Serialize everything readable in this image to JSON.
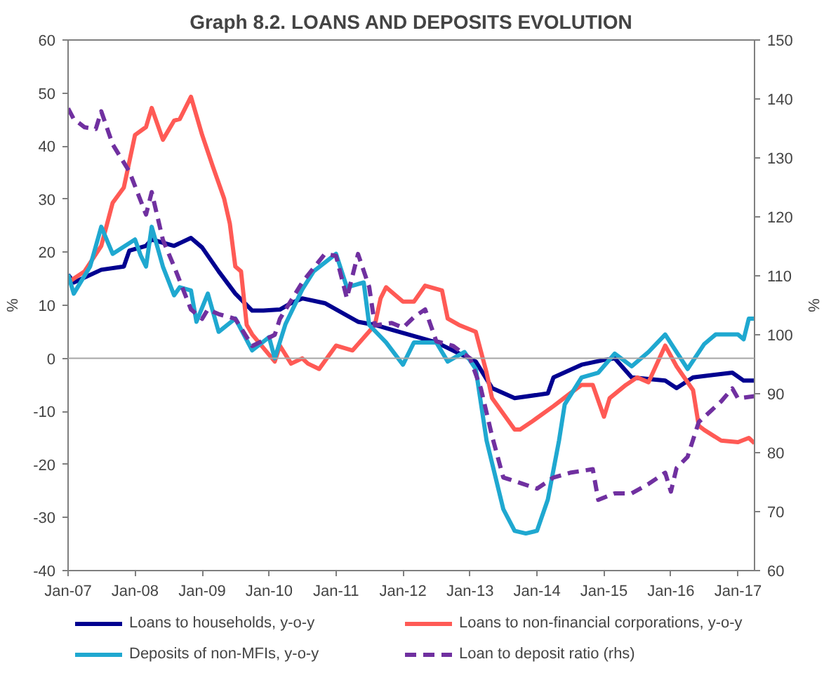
{
  "chart_data": {
    "type": "line",
    "title": "Graph 8.2. LOANS AND DEPOSITS EVOLUTION",
    "ylabel": "%",
    "y2label": "%",
    "legend": "bottom",
    "xlim": [
      "2007-01",
      "2017-04"
    ],
    "xticks": [
      {
        "value": "2007-01",
        "label": "Jan-07"
      },
      {
        "value": "2008-01",
        "label": "Jan-08"
      },
      {
        "value": "2009-01",
        "label": "Jan-09"
      },
      {
        "value": "2010-01",
        "label": "Jan-10"
      },
      {
        "value": "2011-01",
        "label": "Jan-11"
      },
      {
        "value": "2012-01",
        "label": "Jan-12"
      },
      {
        "value": "2013-01",
        "label": "Jan-13"
      },
      {
        "value": "2014-01",
        "label": "Jan-14"
      },
      {
        "value": "2015-01",
        "label": "Jan-15"
      },
      {
        "value": "2016-01",
        "label": "Jan-16"
      },
      {
        "value": "2017-01",
        "label": "Jan-17"
      }
    ],
    "ylim": [
      -40,
      60
    ],
    "yticks": [
      -40,
      -30,
      -20,
      -10,
      0,
      10,
      20,
      30,
      40,
      50,
      60
    ],
    "y2lim": [
      60,
      150
    ],
    "y2ticks": [
      60,
      70,
      80,
      90,
      100,
      110,
      120,
      130,
      140,
      150
    ],
    "ref_lines": [
      {
        "axis": "y",
        "value": 0,
        "color": "#a6a6a6"
      }
    ],
    "series": [
      {
        "name": "Loans to households, y-o-y",
        "color": "#000090",
        "line_style": "solid",
        "x": [
          "2007-01",
          "2007-02",
          "2007-07",
          "2007-11",
          "2007-12",
          "2008-03",
          "2008-04",
          "2008-08",
          "2008-11",
          "2009-01",
          "2009-04",
          "2009-07",
          "2009-10",
          "2009-12",
          "2010-03",
          "2010-05",
          "2010-07",
          "2010-11",
          "2011-05",
          "2011-08",
          "2011-11",
          "2012-07",
          "2013-02",
          "2013-05",
          "2013-09",
          "2014-03",
          "2014-04",
          "2014-09",
          "2015-01",
          "2015-03",
          "2015-06",
          "2015-12",
          "2016-02",
          "2016-05",
          "2016-12",
          "2017-02",
          "2017-04"
        ],
        "values": [
          15.8,
          14.3,
          16.7,
          17.3,
          20.3,
          21.2,
          22.4,
          21.2,
          22.7,
          20.9,
          16.4,
          12.2,
          9,
          9,
          9.2,
          10.4,
          11.3,
          10.4,
          6.9,
          6.3,
          5.4,
          3,
          -0.6,
          -5.6,
          -7.5,
          -6.6,
          -3.6,
          -1.2,
          -0.3,
          0,
          -3.6,
          -4.2,
          -5.6,
          -3.6,
          -2.7,
          -4.2,
          -4.2
        ]
      },
      {
        "name": "Loans to non-financial corporations, y-o-y",
        "color": "#ff5a55",
        "line_style": "solid",
        "x": [
          "2007-01",
          "2007-04",
          "2007-07",
          "2007-09",
          "2007-11",
          "2008-01",
          "2008-03",
          "2008-04",
          "2008-06",
          "2008-08",
          "2008-09",
          "2008-11",
          "2009-01",
          "2009-03",
          "2009-05",
          "2009-06",
          "2009-07",
          "2009-08",
          "2009-09",
          "2009-10",
          "2010-02",
          "2010-03",
          "2010-05",
          "2010-07",
          "2010-08",
          "2010-10",
          "2011-01",
          "2011-04",
          "2011-08",
          "2011-09",
          "2011-10",
          "2012-01",
          "2012-03",
          "2012-05",
          "2012-08",
          "2012-09",
          "2012-11",
          "2013-02",
          "2013-04",
          "2013-05",
          "2013-09",
          "2013-10",
          "2013-12",
          "2014-04",
          "2014-07",
          "2014-09",
          "2014-11",
          "2015-01",
          "2015-02",
          "2015-05",
          "2015-07",
          "2015-09",
          "2015-12",
          "2016-02",
          "2016-05",
          "2016-06",
          "2016-07",
          "2016-10",
          "2017-01",
          "2017-03",
          "2017-04"
        ],
        "values": [
          14.3,
          16.4,
          21.2,
          29.3,
          32.2,
          42.1,
          43.6,
          47.2,
          41.2,
          44.8,
          45.1,
          49.3,
          42.1,
          36.1,
          30.1,
          25.4,
          17.3,
          16.4,
          6.3,
          4.5,
          -0.6,
          2.4,
          -1,
          0,
          -1,
          -2,
          2.4,
          1.5,
          6.3,
          11.3,
          13.4,
          10.7,
          10.7,
          13.7,
          12.8,
          7.5,
          6.3,
          5,
          -2.7,
          -7.5,
          -13.4,
          -13.4,
          -12,
          -9,
          -6.6,
          -5,
          -5,
          -11,
          -7.5,
          -5,
          -3.6,
          -4.5,
          2.4,
          -1.5,
          -6,
          -12.7,
          -13.5,
          -15.5,
          -15.8,
          -15,
          -16
        ]
      },
      {
        "name": "Deposits of non-MFIs, y-o-y",
        "color": "#1fa8d0",
        "line_style": "solid",
        "x": [
          "2007-01",
          "2007-02",
          "2007-05",
          "2007-07",
          "2007-09",
          "2008-01",
          "2008-02",
          "2008-03",
          "2008-04",
          "2008-06",
          "2008-08",
          "2008-09",
          "2008-11",
          "2008-12",
          "2009-02",
          "2009-04",
          "2009-07",
          "2009-10",
          "2010-01",
          "2010-02",
          "2010-04",
          "2010-07",
          "2010-09",
          "2011-01",
          "2011-03",
          "2011-06",
          "2011-07",
          "2011-10",
          "2012-01",
          "2012-03",
          "2012-07",
          "2012-09",
          "2012-12",
          "2013-02",
          "2013-04",
          "2013-07",
          "2013-09",
          "2013-11",
          "2014-01",
          "2014-03",
          "2014-05",
          "2014-06",
          "2014-09",
          "2014-12",
          "2015-03",
          "2015-06",
          "2015-09",
          "2015-12",
          "2016-02",
          "2016-04",
          "2016-07",
          "2016-09",
          "2017-01",
          "2017-02",
          "2017-03",
          "2017-04"
        ],
        "values": [
          15.8,
          12.2,
          17.3,
          24.8,
          19.7,
          22.4,
          19.4,
          17.3,
          24.8,
          17.3,
          11.9,
          13.4,
          12.8,
          6.9,
          12.2,
          5,
          7.5,
          1.5,
          4,
          0,
          6.5,
          13,
          16.4,
          19.7,
          13.4,
          14.3,
          6.3,
          3,
          -1.2,
          3,
          3,
          -0.6,
          1.2,
          -2,
          -15.5,
          -28.4,
          -32.5,
          -33,
          -32.5,
          -26.6,
          -15.5,
          -8.7,
          -3.6,
          -2.7,
          0.9,
          -1.5,
          1.2,
          4.5,
          1.2,
          -2,
          2.7,
          4.5,
          4.5,
          3.6,
          7.5,
          7.5
        ]
      },
      {
        "name": "Loan to deposit ratio (rhs)",
        "color": "#7030a0",
        "line_style": "dashed",
        "axis": "y2",
        "x": [
          "2007-01",
          "2007-02",
          "2007-04",
          "2007-06",
          "2007-07",
          "2007-09",
          "2007-12",
          "2008-03",
          "2008-04",
          "2008-06",
          "2008-08",
          "2008-11",
          "2009-01",
          "2009-02",
          "2009-04",
          "2009-07",
          "2009-10",
          "2010-02",
          "2010-03",
          "2010-07",
          "2010-11",
          "2011-01",
          "2011-03",
          "2011-05",
          "2011-07",
          "2011-08",
          "2011-11",
          "2012-01",
          "2012-03",
          "2012-05",
          "2012-07",
          "2012-10",
          "2013-01",
          "2013-03",
          "2013-05",
          "2013-07",
          "2013-08",
          "2014-01",
          "2014-04",
          "2014-07",
          "2014-11",
          "2014-12",
          "2015-03",
          "2015-06",
          "2015-09",
          "2015-12",
          "2016-01",
          "2016-02",
          "2016-04",
          "2016-06",
          "2016-10",
          "2016-12",
          "2017-01",
          "2017-04"
        ],
        "values": [
          138.4,
          136.6,
          135.2,
          134.9,
          137.9,
          132.3,
          127.7,
          120.4,
          124.2,
          116.1,
          111.6,
          104.3,
          102.7,
          104.3,
          103.5,
          102.7,
          98.1,
          100,
          102.7,
          108.9,
          113.7,
          113.4,
          106.2,
          113.7,
          108.1,
          101.6,
          102,
          101.2,
          103,
          104.3,
          98.9,
          98.1,
          96,
          90.9,
          82.8,
          75.8,
          75.5,
          73.9,
          75.8,
          76.6,
          77.2,
          72,
          73.1,
          73.1,
          74.7,
          76.6,
          73.4,
          77.4,
          79.3,
          85.2,
          88.7,
          90.9,
          89.2,
          89.6
        ]
      }
    ]
  }
}
